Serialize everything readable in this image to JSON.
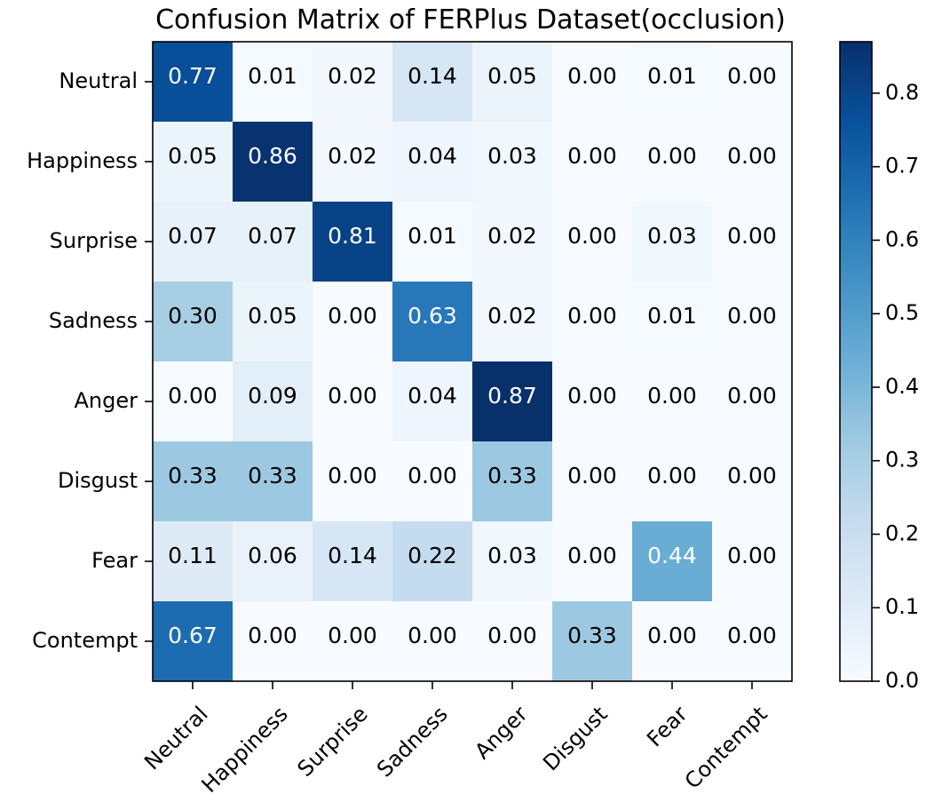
{
  "chart_data": {
    "type": "heatmap",
    "title": "Confusion Matrix of FERPlus Dataset(occlusion)",
    "xlabel": "",
    "ylabel": "",
    "row_labels": [
      "Neutral",
      "Happiness",
      "Surprise",
      "Sadness",
      "Anger",
      "Disgust",
      "Fear",
      "Contempt"
    ],
    "col_labels": [
      "Neutral",
      "Happiness",
      "Surprise",
      "Sadness",
      "Anger",
      "Disgust",
      "Fear",
      "Contempt"
    ],
    "values": [
      [
        0.77,
        0.01,
        0.02,
        0.14,
        0.05,
        0.0,
        0.01,
        0.0
      ],
      [
        0.05,
        0.86,
        0.02,
        0.04,
        0.03,
        0.0,
        0.0,
        0.0
      ],
      [
        0.07,
        0.07,
        0.81,
        0.01,
        0.02,
        0.0,
        0.03,
        0.0
      ],
      [
        0.3,
        0.05,
        0.0,
        0.63,
        0.02,
        0.0,
        0.01,
        0.0
      ],
      [
        0.0,
        0.09,
        0.0,
        0.04,
        0.87,
        0.0,
        0.0,
        0.0
      ],
      [
        0.33,
        0.33,
        0.0,
        0.0,
        0.33,
        0.0,
        0.0,
        0.0
      ],
      [
        0.11,
        0.06,
        0.14,
        0.22,
        0.03,
        0.0,
        0.44,
        0.0
      ],
      [
        0.67,
        0.0,
        0.0,
        0.0,
        0.0,
        0.33,
        0.0,
        0.0
      ]
    ],
    "colormap": "Blues",
    "colorbar": {
      "range": [
        0.0,
        0.87
      ],
      "ticks": [
        0.0,
        0.1,
        0.2,
        0.3,
        0.4,
        0.5,
        0.6,
        0.7,
        0.8
      ],
      "tick_labels": [
        "0.0",
        "0.1",
        "0.2",
        "0.3",
        "0.4",
        "0.5",
        "0.6",
        "0.7",
        "0.8"
      ]
    },
    "text_threshold": 0.435,
    "grid": false
  }
}
